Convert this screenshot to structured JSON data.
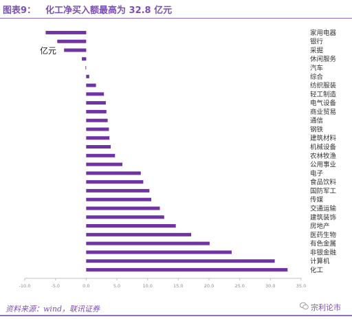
{
  "header": {
    "figure_label": "图表9：",
    "title": "化工净买入额最高为 32.8 亿元"
  },
  "footer": {
    "source": "资料来源：wind，联讯证券",
    "watermark": "宗利论市"
  },
  "colors": {
    "bar": "#7033a3",
    "accent": "#7a4fb6",
    "axis": "#bfbfbf",
    "text": "#333333"
  },
  "chart_data": {
    "type": "bar",
    "orientation": "horizontal",
    "unit_annotation": "亿元",
    "categories": [
      "家用电器",
      "银行",
      "采掘",
      "休闲服务",
      "汽车",
      "综合",
      "纺织服装",
      "轻工制造",
      "电气设备",
      "商业贸易",
      "通信",
      "钢铁",
      "建筑材料",
      "机械设备",
      "农林牧渔",
      "公用事业",
      "电子",
      "食品饮料",
      "国防军工",
      "传媒",
      "交通运输",
      "建筑装饰",
      "房地产",
      "医药生物",
      "有色金属",
      "非银金融",
      "计算机",
      "化工"
    ],
    "values": [
      -6.6,
      -4.7,
      -3.6,
      -0.7,
      -0.1,
      0.5,
      1.6,
      2.9,
      3.2,
      3.3,
      3.5,
      3.7,
      3.8,
      4.0,
      4.7,
      5.9,
      8.9,
      9.3,
      10.3,
      10.6,
      12.0,
      12.7,
      14.6,
      17.1,
      20.1,
      23.7,
      30.7,
      32.8
    ],
    "xlim": [
      -10,
      35
    ],
    "xticks": [
      "-10.0",
      "-5.0",
      "0.0",
      "5.0",
      "10.0",
      "15.0",
      "20.0",
      "25.0",
      "30.0",
      "35.0"
    ],
    "grid": false,
    "legend": "none"
  }
}
